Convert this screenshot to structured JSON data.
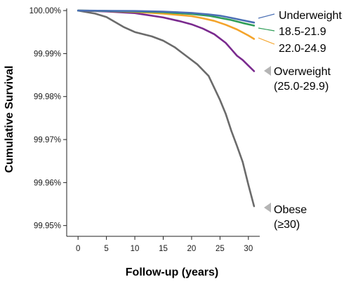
{
  "chart_data": {
    "type": "line",
    "xlabel": "Follow-up (years)",
    "ylabel": "Cumulative Survival",
    "xlim": [
      -2,
      32
    ],
    "ylim": [
      99.9475,
      100.0005
    ],
    "x_ticks": [
      0,
      5,
      10,
      15,
      20,
      25,
      30
    ],
    "x_tick_labels": [
      "0",
      "5",
      "10",
      "15",
      "20",
      "25",
      "30"
    ],
    "y_ticks": [
      100.0,
      99.99,
      99.98,
      99.97,
      99.96,
      99.95
    ],
    "y_tick_labels": [
      "100.00%",
      "99.99%",
      "99.98%",
      "99.97%",
      "99.96%",
      "99.95%"
    ],
    "grid": false,
    "series": [
      {
        "name": "Underweight",
        "color": "#4a6fb4",
        "label_lines": [
          "Underweight"
        ],
        "x": [
          0,
          5,
          10,
          15,
          20,
          23,
          25,
          27,
          29,
          31
        ],
        "y": [
          100.0,
          99.99995,
          99.9999,
          99.99975,
          99.99945,
          99.9991,
          99.9988,
          99.9983,
          99.99775,
          99.9972
        ]
      },
      {
        "name": "18.5-21.9",
        "color": "#2f9e58",
        "label_lines": [
          "18.5-21.9"
        ],
        "x": [
          0,
          5,
          10,
          15,
          20,
          23,
          25,
          27,
          29,
          31
        ],
        "y": [
          100.0,
          99.9999,
          99.9998,
          99.9996,
          99.9992,
          99.9988,
          99.9983,
          99.9978,
          99.9971,
          99.9965
        ]
      },
      {
        "name": "22.0-24.9",
        "color": "#f4a42b",
        "label_lines": [
          "22.0-24.9"
        ],
        "x": [
          0,
          5,
          10,
          15,
          20,
          22,
          24,
          26,
          28,
          30,
          31
        ],
        "y": [
          100.0,
          99.9999,
          99.9997,
          99.9993,
          99.9987,
          99.9982,
          99.9976,
          99.9967,
          99.9956,
          99.9942,
          99.9934
        ]
      },
      {
        "name": "Overweight (25.0-29.9)",
        "color": "#7a2a8e",
        "label_lines": [
          "Overweight",
          "(25.0-29.9)"
        ],
        "x": [
          0,
          5,
          10,
          15,
          18,
          20,
          22,
          24,
          26,
          27,
          28,
          29,
          30,
          31
        ],
        "y": [
          100.0,
          99.9998,
          99.9994,
          99.9984,
          99.9975,
          99.9968,
          99.9958,
          99.9945,
          99.9925,
          99.991,
          99.9895,
          99.9885,
          99.9872,
          99.9859
        ]
      },
      {
        "name": "Obese (≥30)",
        "color": "#6b6b6b",
        "label_lines": [
          "Obese",
          "(≥30)"
        ],
        "x": [
          0,
          3,
          5,
          8,
          10,
          13,
          15,
          17,
          19,
          21,
          23,
          24,
          25,
          26,
          27,
          28,
          29,
          30,
          31
        ],
        "y": [
          100.0,
          99.9993,
          99.9985,
          99.9962,
          99.995,
          99.994,
          99.993,
          99.9915,
          99.9895,
          99.9875,
          99.9848,
          99.982,
          99.9792,
          99.976,
          99.972,
          99.9685,
          99.9648,
          99.9595,
          99.9545
        ]
      }
    ]
  }
}
